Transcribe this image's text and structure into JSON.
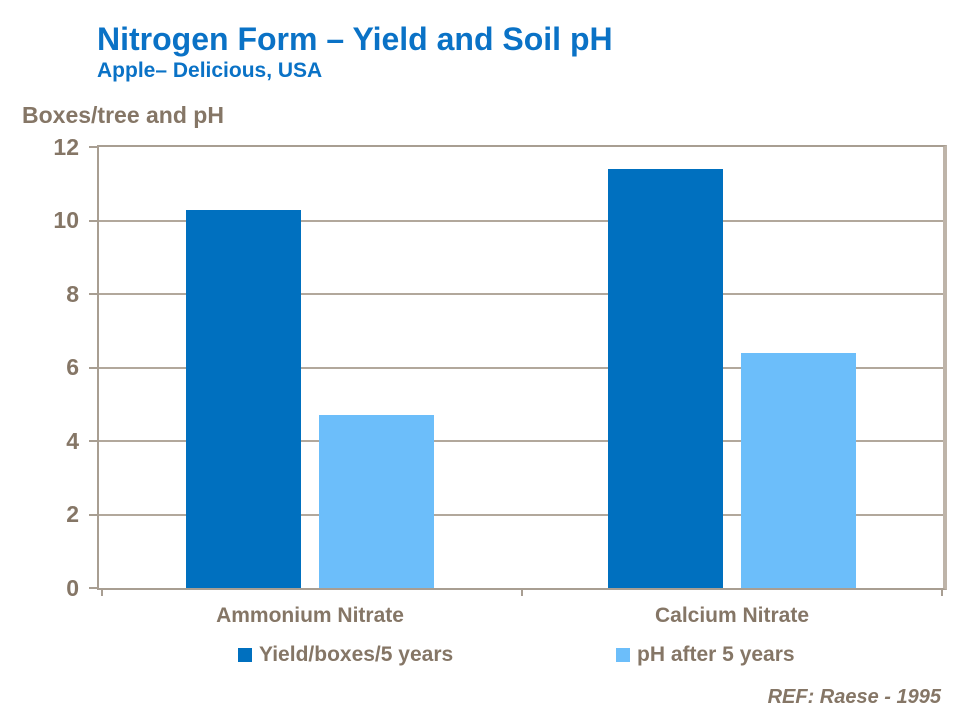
{
  "page": {
    "title": "Nitrogen Form – Yield and Soil pH",
    "subtitle": "Apple– Delicious, USA",
    "axis_title": "Boxes/tree and pH",
    "reference": "REF: Raese - 1995"
  },
  "colors": {
    "title_blue": "#0a72c6",
    "text_tan": "#857666",
    "gridline_tan": "#b2a89c",
    "axis_border_tan": "#a89e92",
    "axis_border_right": "#beb4a9",
    "series_yield": "#0070bf",
    "series_ph": "#6cbefa"
  },
  "chart_data": {
    "type": "bar",
    "title": "Nitrogen Form – Yield and Soil pH",
    "subtitle": "Apple– Delicious, USA",
    "ylabel": "Boxes/tree and pH",
    "categories": [
      "Ammonium Nitrate",
      "Calcium Nitrate"
    ],
    "series": [
      {
        "name": "Yield/boxes/5 years",
        "values": [
          10.3,
          11.4
        ],
        "color": "#0070bf"
      },
      {
        "name": "pH after 5 years",
        "values": [
          4.7,
          6.4
        ],
        "color": "#6cbefa"
      }
    ],
    "ylim": [
      0,
      12
    ],
    "ytick_step": 2,
    "ytick_labels": [
      "12",
      "10",
      "8",
      "6",
      "4",
      "2",
      "0"
    ],
    "grid": true,
    "legend_position": "bottom"
  }
}
